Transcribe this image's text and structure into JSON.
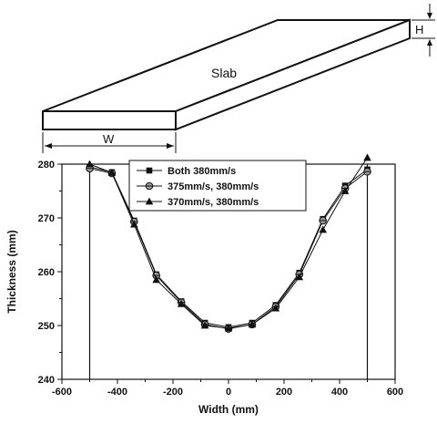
{
  "diagram": {
    "slab_label": "Slab",
    "width_label": "W",
    "height_label": "H"
  },
  "chart_data": {
    "type": "line",
    "title": "",
    "xlabel": "Width (mm)",
    "ylabel": "Thickness (mm)",
    "xlim": [
      -600,
      600
    ],
    "ylim": [
      240,
      280
    ],
    "xticks": [
      -600,
      -400,
      -200,
      0,
      200,
      400,
      600
    ],
    "yticks": [
      240,
      250,
      260,
      270,
      280
    ],
    "edge_lines_x": [
      -500,
      500
    ],
    "x": [
      -500,
      -420,
      -340,
      -260,
      -170,
      -85,
      0,
      85,
      170,
      255,
      340,
      420,
      500
    ],
    "series": [
      {
        "name": "Both 380mm/s",
        "marker": "square",
        "values": [
          279.5,
          278.5,
          269.5,
          259.5,
          254.5,
          250.5,
          249.7,
          250.5,
          253.8,
          259.8,
          269.8,
          276.0,
          279.0
        ]
      },
      {
        "name": "375mm/s, 380mm/s",
        "marker": "circle",
        "values": [
          279.2,
          278.3,
          269.3,
          259.3,
          254.3,
          250.2,
          249.4,
          250.2,
          253.5,
          259.5,
          269.5,
          275.5,
          278.6
        ]
      },
      {
        "name": "370mm/s, 380mm/s",
        "marker": "triangle",
        "values": [
          280.0,
          278.4,
          268.8,
          258.5,
          254.0,
          250.0,
          249.5,
          250.2,
          253.2,
          259.0,
          267.8,
          275.0,
          281.2
        ]
      }
    ],
    "legend_position": "top-center",
    "grid": false
  }
}
